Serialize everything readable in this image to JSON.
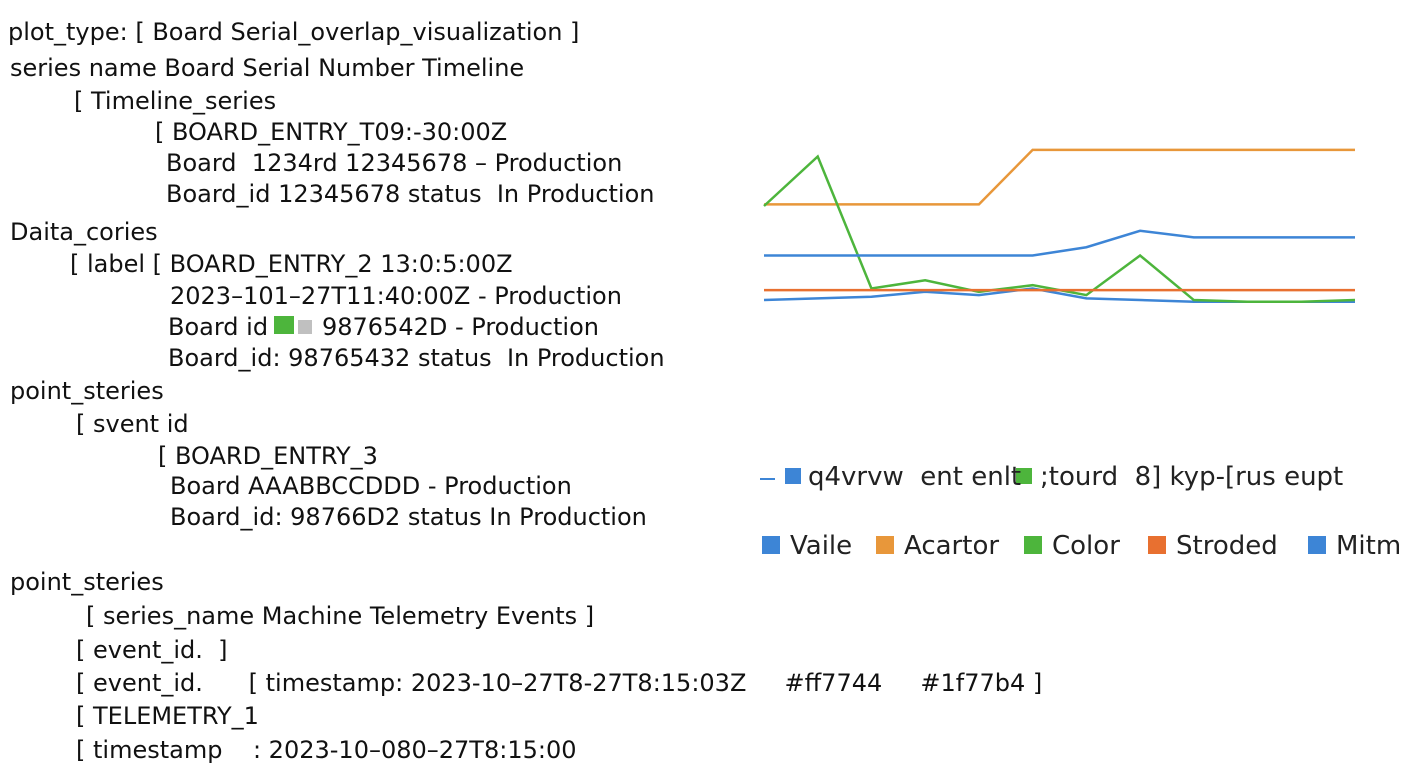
{
  "document": {
    "lines": [
      "plot_type: [ Board Serial_overlap_visualization ]",
      "series name Board Serial Number Timeline",
      "[ Timeline_series",
      "[ BOARD_ENTRY_T09:-30:00Z",
      "Board  1234rd 12345678 – Production",
      "Board_id 12345678 status  In Production",
      "Daita_cories",
      "[ label [ BOARD_ENTRY_2 13:0:5:00Z",
      "2023–101–27T11:40:00Z - Production",
      "Board id",
      "9876542D - Production",
      "Board_id: 98765432 status  In Production",
      "point_steries",
      "[ svent id",
      "[ BOARD_ENTRY_3",
      "Board AAABBCCDDD - Production",
      "Board_id: 98766D2 status In Production",
      "point_steries",
      "[ series_name Machine Telemetry Events ]",
      "[ event_id.  ]",
      "[ event_id.      [ timestamp: 2023-10–27T8-27T8:15:03Z     #ff7744     #1f77b4 ]",
      "[ TELEMETRY_1",
      "[ timestamp    : 2023-10–080–27T8:15:00"
    ]
  },
  "chart_data": {
    "type": "line",
    "annotations": [
      "q4vrvw  ent enlt",
      ";tourd  8] kyp-[rus eupt"
    ],
    "ylim": [
      0,
      100
    ],
    "series": [
      {
        "name": "Vaile",
        "color": "#3d85d6",
        "values": [
          3,
          4,
          5,
          8,
          6,
          10,
          4,
          3,
          2,
          2,
          2,
          2
        ]
      },
      {
        "name": "Acartor",
        "color": "#e8973a",
        "values": [
          61,
          61,
          61,
          61,
          61,
          94,
          94,
          94,
          94,
          94,
          94,
          94
        ]
      },
      {
        "name": "Color",
        "color": "#4db53c",
        "values": [
          60,
          90,
          10,
          15,
          8,
          12,
          6,
          30,
          3,
          2,
          2,
          3
        ]
      },
      {
        "name": "Stroded",
        "color": "#e87030",
        "values": [
          9,
          9,
          9,
          9,
          9,
          9,
          9,
          9,
          9,
          9,
          9,
          9
        ]
      },
      {
        "name": "Mitm",
        "color": "#3d85d6",
        "values": [
          30,
          30,
          30,
          30,
          30,
          30,
          35,
          45,
          41,
          41,
          41,
          41
        ]
      }
    ]
  }
}
